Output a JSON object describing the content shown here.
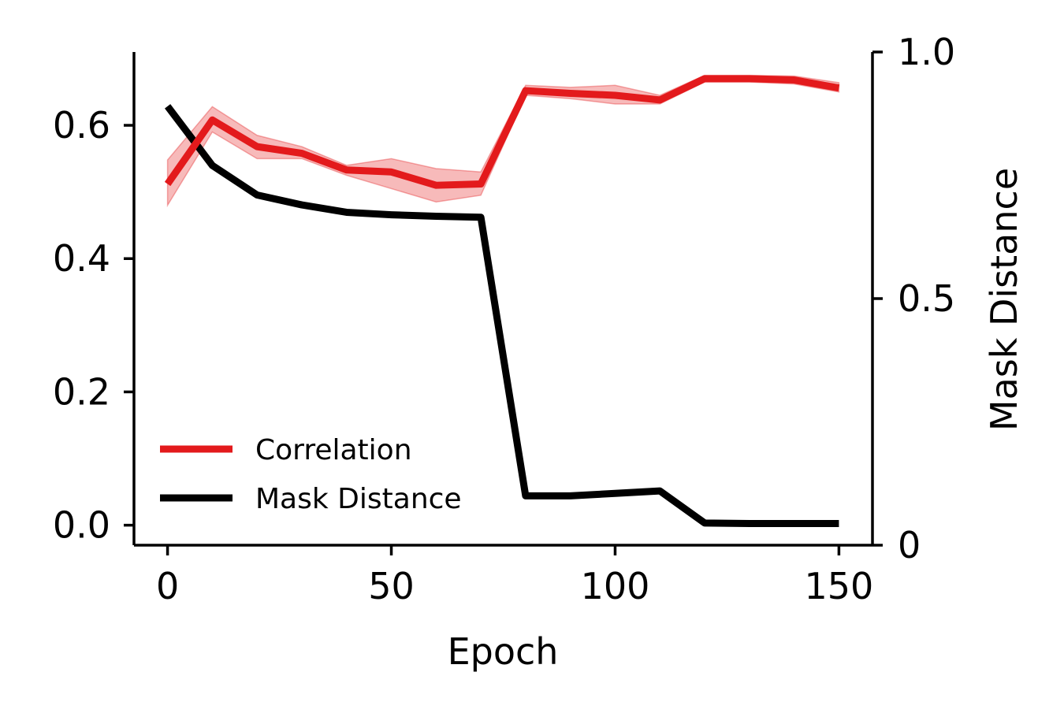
{
  "chart_data": {
    "type": "line",
    "title": "",
    "xlabel": "Epoch",
    "ylabel_left": "",
    "ylabel_right": "Mask Distance",
    "xlim": [
      -7.5,
      157.5
    ],
    "ylim_left": [
      -0.03,
      0.71
    ],
    "ylim_right": [
      0,
      1.0
    ],
    "x_ticks": [
      0,
      50,
      100,
      150
    ],
    "x_tick_labels": [
      "0",
      "50",
      "100",
      "150"
    ],
    "y_left_ticks": [
      0.0,
      0.2,
      0.4,
      0.6
    ],
    "y_left_tick_labels": [
      "0.0",
      "0.2",
      "0.4",
      "0.6"
    ],
    "y_right_ticks": [
      0,
      0.5,
      1.0
    ],
    "y_right_tick_labels": [
      "0",
      "0.5",
      "1.0"
    ],
    "x": [
      0,
      10,
      20,
      30,
      40,
      50,
      60,
      70,
      80,
      90,
      100,
      110,
      120,
      130,
      140,
      150
    ],
    "series": [
      {
        "name": "Correlation",
        "axis": "left",
        "color": "#e31a1c",
        "values": [
          0.512,
          0.608,
          0.568,
          0.558,
          0.533,
          0.53,
          0.51,
          0.512,
          0.652,
          0.648,
          0.645,
          0.638,
          0.67,
          0.67,
          0.668,
          0.656
        ],
        "lower": [
          0.48,
          0.59,
          0.55,
          0.55,
          0.525,
          0.505,
          0.485,
          0.495,
          0.645,
          0.64,
          0.632,
          0.632,
          0.665,
          0.665,
          0.662,
          0.65
        ],
        "upper": [
          0.548,
          0.628,
          0.585,
          0.568,
          0.54,
          0.55,
          0.535,
          0.53,
          0.66,
          0.657,
          0.66,
          0.645,
          0.675,
          0.675,
          0.674,
          0.664
        ]
      },
      {
        "name": "Mask Distance",
        "axis": "right",
        "color": "#000000",
        "values": [
          0.89,
          0.77,
          0.71,
          0.69,
          0.675,
          0.67,
          0.667,
          0.665,
          0.1,
          0.1,
          0.105,
          0.11,
          0.045,
          0.044,
          0.044,
          0.044
        ]
      }
    ],
    "legend": {
      "position": "lower-left",
      "entries": [
        "Correlation",
        "Mask Distance"
      ]
    },
    "grid": false
  }
}
